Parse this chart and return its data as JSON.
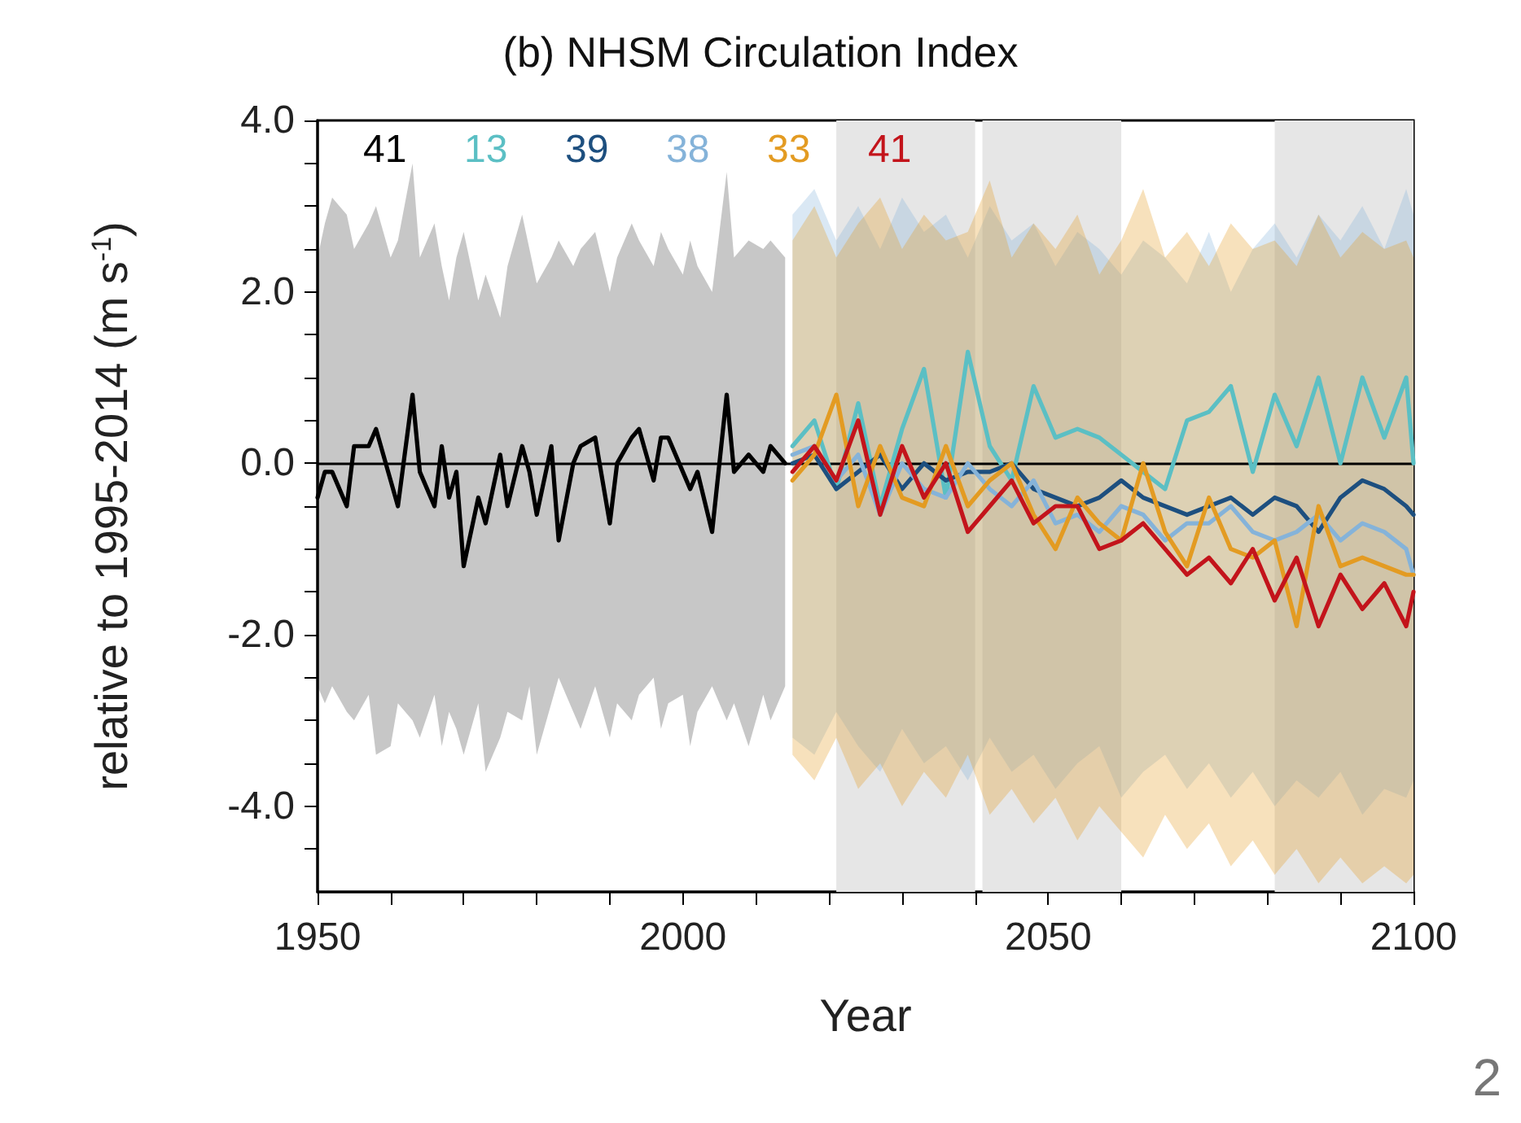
{
  "chart_data": {
    "type": "line",
    "title": "(b) NHSM Circulation Index",
    "xlabel": "Year",
    "ylabel": "relative to 1995-2014 (m s$^{-1}$)",
    "xlim": [
      1950,
      2100
    ],
    "xticks": [
      1950,
      {
        "value": 1960,
        "label": null
      },
      {
        "value": 1970,
        "label": null
      },
      {
        "value": 1980,
        "label": null
      },
      {
        "value": 1990,
        "label": null
      },
      2000,
      {
        "value": 2010,
        "label": null
      },
      {
        "value": 2020,
        "label": null
      },
      {
        "value": 2030,
        "label": null
      },
      {
        "value": 2040,
        "label": null
      },
      2050,
      {
        "value": 2060,
        "label": null
      },
      {
        "value": 2070,
        "label": null
      },
      {
        "value": 2080,
        "label": null
      },
      {
        "value": 2090,
        "label": null
      },
      2100
    ],
    "ylim": [
      -5,
      4
    ],
    "yticks": [
      {
        "value": -4.5,
        "label": null
      },
      {
        "value": -4,
        "label": "-4.0"
      },
      {
        "value": -3.5,
        "label": null
      },
      {
        "value": -3,
        "label": null
      },
      {
        "value": -2.5,
        "label": null
      },
      {
        "value": -2,
        "label": "-2.0"
      },
      {
        "value": -1.5,
        "label": null
      },
      {
        "value": -1,
        "label": null
      },
      {
        "value": -0.5,
        "label": null
      },
      {
        "value": 0,
        "label": "0.0"
      },
      {
        "value": 0.5,
        "label": null
      },
      {
        "value": 1,
        "label": null
      },
      {
        "value": 1.5,
        "label": null
      },
      {
        "value": 2,
        "label": "2.0"
      },
      {
        "value": 2.5,
        "label": null
      },
      {
        "value": 3,
        "label": null
      },
      {
        "value": 3.5,
        "label": null
      },
      {
        "value": 4,
        "label": "4.0"
      }
    ],
    "grid": false,
    "legend": "top left",
    "line_style": "solid",
    "ref_lines": [
      {
        "axis": "y",
        "value": 0,
        "color": "#000000"
      }
    ],
    "bands": [
      {
        "axis": "x",
        "from": 2021,
        "to": 2040,
        "color": "#e6e6e6"
      },
      {
        "axis": "x",
        "from": 2041,
        "to": 2060,
        "color": "#e6e6e6"
      },
      {
        "axis": "x",
        "from": 2081,
        "to": 2100,
        "color": "#e6e6e6"
      }
    ],
    "x": [
      2015,
      2018,
      2021,
      2024,
      2027,
      2030,
      2033,
      2036,
      2039,
      2042,
      2045,
      2048,
      2051,
      2054,
      2057,
      2060,
      2063,
      2066,
      2069,
      2072,
      2075,
      2078,
      2081,
      2084,
      2087,
      2090,
      2093,
      2096,
      2099,
      2100
    ],
    "series": [
      {
        "name": "41",
        "color": "#000000",
        "x": [
          1950,
          1951,
          1952,
          1954,
          1955,
          1957,
          1958,
          1960,
          1961,
          1963,
          1964,
          1966,
          1967,
          1968,
          1969,
          1970,
          1972,
          1973,
          1975,
          1976,
          1978,
          1979,
          1980,
          1982,
          1983,
          1985,
          1986,
          1988,
          1990,
          1991,
          1993,
          1994,
          1996,
          1997,
          1998,
          2000,
          2001,
          2002,
          2004,
          2006,
          2007,
          2009,
          2011,
          2012,
          2014
        ],
        "values": [
          -0.4,
          -0.1,
          -0.1,
          -0.5,
          0.2,
          0.2,
          0.4,
          -0.2,
          -0.5,
          0.8,
          -0.1,
          -0.5,
          0.2,
          -0.4,
          -0.1,
          -1.2,
          -0.4,
          -0.7,
          0.1,
          -0.5,
          0.2,
          -0.1,
          -0.6,
          0.2,
          -0.9,
          0.0,
          0.2,
          0.3,
          -0.7,
          0.0,
          0.3,
          0.4,
          -0.2,
          0.3,
          0.3,
          -0.1,
          -0.3,
          -0.1,
          -0.8,
          0.8,
          -0.1,
          0.1,
          -0.1,
          0.2,
          0.0
        ],
        "upper": [
          2.4,
          2.8,
          3.1,
          2.9,
          2.5,
          2.8,
          3.0,
          2.4,
          2.6,
          3.5,
          2.4,
          2.8,
          2.3,
          1.9,
          2.4,
          2.7,
          1.9,
          2.2,
          1.7,
          2.3,
          2.9,
          2.5,
          2.1,
          2.4,
          2.6,
          2.3,
          2.5,
          2.7,
          2.0,
          2.4,
          2.8,
          2.6,
          2.3,
          2.7,
          2.5,
          2.2,
          2.6,
          2.3,
          2.0,
          3.4,
          2.4,
          2.6,
          2.5,
          2.6,
          2.4
        ],
        "lower": [
          -2.6,
          -2.8,
          -2.6,
          -2.9,
          -3.0,
          -2.7,
          -3.4,
          -3.3,
          -2.8,
          -3.0,
          -3.2,
          -2.7,
          -3.3,
          -2.9,
          -3.1,
          -3.4,
          -2.8,
          -3.6,
          -3.2,
          -2.9,
          -3.0,
          -2.6,
          -3.4,
          -2.8,
          -2.5,
          -2.9,
          -3.1,
          -2.6,
          -3.2,
          -2.8,
          -3.0,
          -2.7,
          -2.5,
          -3.1,
          -2.8,
          -2.7,
          -3.3,
          -2.9,
          -2.6,
          -3.0,
          -2.8,
          -3.3,
          -2.7,
          -3.0,
          -2.6
        ]
      },
      {
        "name": "13",
        "color": "#5bbfc4",
        "values": [
          0.2,
          0.5,
          -0.3,
          0.7,
          -0.5,
          0.4,
          1.1,
          -0.4,
          1.3,
          0.2,
          -0.2,
          0.9,
          0.3,
          0.4,
          0.3,
          0.1,
          -0.1,
          -0.3,
          0.5,
          0.6,
          0.9,
          -0.1,
          0.8,
          0.2,
          1.0,
          0.0,
          1.0,
          0.3,
          1.0,
          0.0
        ]
      },
      {
        "name": "39",
        "color": "#1d4f7f",
        "values": [
          0.0,
          0.1,
          -0.3,
          -0.1,
          0.1,
          -0.3,
          0.0,
          -0.2,
          -0.1,
          -0.1,
          0.0,
          -0.3,
          -0.4,
          -0.5,
          -0.4,
          -0.2,
          -0.4,
          -0.5,
          -0.6,
          -0.5,
          -0.4,
          -0.6,
          -0.4,
          -0.5,
          -0.8,
          -0.4,
          -0.2,
          -0.3,
          -0.5,
          -0.6
        ]
      },
      {
        "name": "38",
        "color": "#85b3d9",
        "values": [
          0.1,
          0.2,
          -0.2,
          0.1,
          -0.6,
          0.0,
          -0.3,
          -0.4,
          0.0,
          -0.3,
          -0.5,
          -0.2,
          -0.7,
          -0.6,
          -0.8,
          -0.5,
          -0.6,
          -0.9,
          -0.7,
          -0.7,
          -0.5,
          -0.8,
          -0.9,
          -0.8,
          -0.6,
          -0.9,
          -0.7,
          -0.8,
          -1.0,
          -1.3
        ],
        "upper": [
          2.9,
          3.2,
          2.6,
          3.0,
          2.5,
          3.1,
          2.7,
          2.9,
          2.4,
          3.0,
          2.6,
          2.8,
          2.3,
          2.7,
          2.5,
          2.2,
          2.6,
          2.4,
          2.1,
          2.7,
          2.0,
          2.5,
          2.8,
          2.4,
          2.9,
          2.6,
          3.0,
          2.5,
          3.2,
          2.9
        ],
        "lower": [
          -3.2,
          -3.4,
          -2.9,
          -3.3,
          -3.6,
          -3.1,
          -3.5,
          -3.3,
          -3.7,
          -3.2,
          -3.6,
          -3.4,
          -3.8,
          -3.5,
          -3.3,
          -3.9,
          -3.6,
          -3.4,
          -3.8,
          -3.5,
          -3.9,
          -3.6,
          -4.0,
          -3.7,
          -3.9,
          -3.6,
          -4.1,
          -3.8,
          -3.9,
          -3.7
        ]
      },
      {
        "name": "33",
        "color": "#e39b22",
        "values": [
          -0.2,
          0.1,
          0.8,
          -0.5,
          0.2,
          -0.4,
          -0.5,
          0.2,
          -0.5,
          -0.2,
          0.0,
          -0.6,
          -1.0,
          -0.4,
          -0.7,
          -0.9,
          0.0,
          -0.8,
          -1.2,
          -0.4,
          -1.0,
          -1.1,
          -0.9,
          -1.9,
          -0.5,
          -1.2,
          -1.1,
          -1.2,
          -1.3,
          -1.3
        ],
        "upper": [
          2.6,
          3.0,
          2.4,
          2.8,
          3.1,
          2.5,
          2.9,
          2.6,
          2.7,
          3.3,
          2.4,
          2.8,
          2.5,
          2.9,
          2.2,
          2.6,
          3.2,
          2.4,
          2.7,
          2.3,
          2.8,
          2.5,
          2.6,
          2.3,
          2.9,
          2.4,
          2.7,
          2.5,
          2.6,
          2.4
        ],
        "lower": [
          -3.4,
          -3.7,
          -3.2,
          -3.8,
          -3.5,
          -4.0,
          -3.6,
          -3.9,
          -3.4,
          -4.1,
          -3.8,
          -4.2,
          -3.9,
          -4.4,
          -4.0,
          -4.3,
          -4.6,
          -4.1,
          -4.5,
          -4.2,
          -4.7,
          -4.4,
          -4.8,
          -4.5,
          -4.9,
          -4.6,
          -4.9,
          -4.7,
          -4.9,
          -4.8
        ]
      },
      {
        "name": "41",
        "color": "#c3141b",
        "values": [
          -0.1,
          0.2,
          -0.2,
          0.5,
          -0.6,
          0.2,
          -0.4,
          0.0,
          -0.8,
          -0.5,
          -0.2,
          -0.7,
          -0.5,
          -0.5,
          -1.0,
          -0.9,
          -0.7,
          -1.0,
          -1.3,
          -1.1,
          -1.4,
          -1.0,
          -1.6,
          -1.1,
          -1.9,
          -1.3,
          -1.7,
          -1.4,
          -1.9,
          -1.5
        ]
      }
    ],
    "annotations": [
      "2"
    ]
  }
}
